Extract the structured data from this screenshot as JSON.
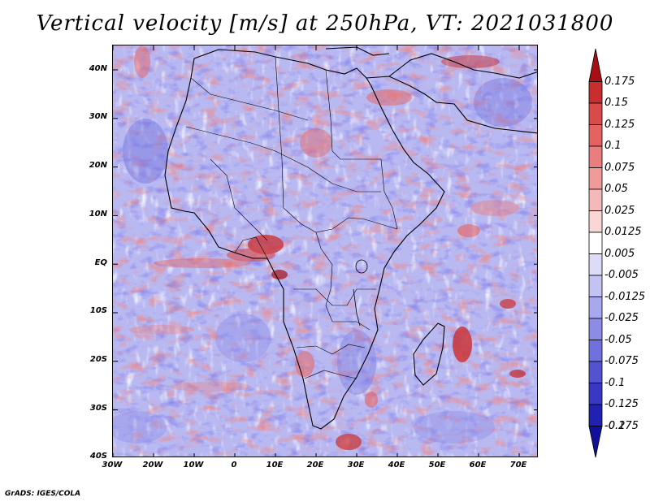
{
  "title": "Vertical velocity [m/s] at 250hPa, VT: 2021031800",
  "map": {
    "variable": "Vertical velocity",
    "units": "m/s",
    "level": "250hPa",
    "valid_time": "2021031800",
    "region": "Africa"
  },
  "axes": {
    "lat_labels": [
      "40N",
      "30N",
      "20N",
      "10N",
      "EQ",
      "10S",
      "20S",
      "30S",
      "40S"
    ],
    "lon_labels": [
      "30W",
      "20W",
      "10W",
      "0",
      "10E",
      "20E",
      "30E",
      "40E",
      "50E",
      "60E",
      "70E"
    ],
    "lat_range": [
      -40,
      45
    ],
    "lon_range": [
      -30,
      75
    ]
  },
  "colorbar": {
    "levels": [
      "0.175",
      "0.15",
      "0.125",
      "0.1",
      "0.075",
      "0.05",
      "0.025",
      "0.0125",
      "0.005",
      "-0.005",
      "-0.0125",
      "-0.025",
      "-0.05",
      "-0.075",
      "-0.1",
      "-0.125",
      "-0.175",
      "-0.2"
    ],
    "colors": [
      "#a50f15",
      "#c92d2d",
      "#d94a4a",
      "#e46262",
      "#ea7d7d",
      "#f09a9a",
      "#f6b9b9",
      "#fad6d6",
      "#ffffff",
      "#dcdcf8",
      "#c3c3f3",
      "#a8a8ee",
      "#8c8ce8",
      "#7070de",
      "#5353d2",
      "#3838c4",
      "#2020b2",
      "#10109a"
    ]
  },
  "colors": {
    "sea_base": "#b9b9f2",
    "land_base": "#c6c6f0",
    "coast": "#000000"
  },
  "footer": "GrADS: IGES/COLA"
}
